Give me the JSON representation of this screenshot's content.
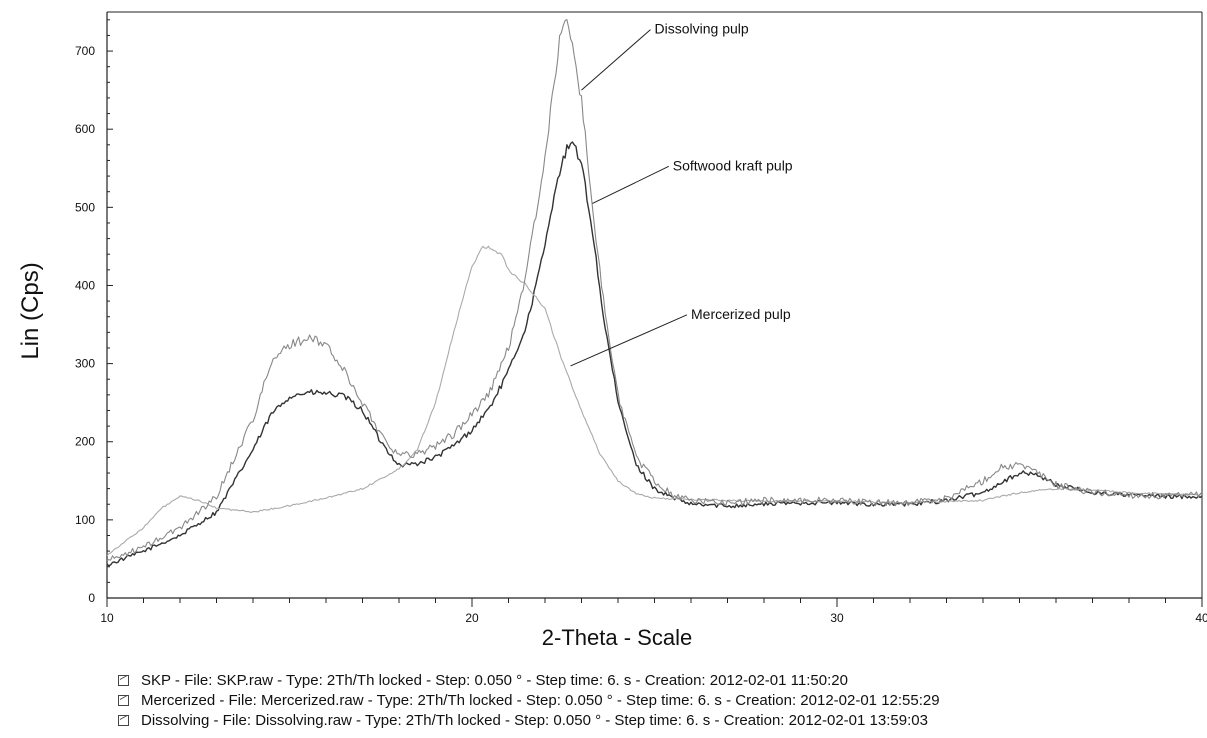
{
  "chart_data": {
    "type": "line",
    "title": "",
    "xlabel": "2-Theta - Scale",
    "ylabel": "Lin (Cps)",
    "xlim": [
      10,
      40
    ],
    "ylim": [
      0,
      750
    ],
    "xticks": [
      10,
      20,
      30,
      40
    ],
    "yticks": [
      0,
      100,
      200,
      300,
      400,
      500,
      600,
      700
    ],
    "grid": false,
    "legend_position": "bottom",
    "series": [
      {
        "name": "SKP",
        "color": "#333333",
        "x": [
          10,
          11,
          12,
          13,
          14,
          14.5,
          15,
          15.5,
          16,
          16.5,
          17,
          17.5,
          18,
          18.5,
          19,
          19.5,
          20,
          20.5,
          21,
          21.5,
          22,
          22.3,
          22.6,
          22.8,
          23,
          23.3,
          23.6,
          24,
          24.5,
          25,
          25.5,
          26,
          27,
          28,
          29,
          30,
          31,
          32,
          33,
          34,
          34.5,
          35,
          35.5,
          36,
          37,
          38,
          39,
          40
        ],
        "values": [
          42,
          60,
          80,
          110,
          190,
          235,
          258,
          263,
          262,
          258,
          240,
          200,
          170,
          172,
          180,
          195,
          215,
          245,
          290,
          350,
          450,
          530,
          575,
          580,
          555,
          470,
          360,
          250,
          170,
          140,
          128,
          120,
          118,
          120,
          122,
          122,
          120,
          120,
          125,
          135,
          148,
          160,
          158,
          145,
          135,
          132,
          130,
          130
        ]
      },
      {
        "name": "Mercerized",
        "color": "#aaaaaa",
        "x": [
          10,
          11,
          11.5,
          12,
          12.5,
          13,
          14,
          15,
          16,
          17,
          18,
          18.5,
          19,
          19.5,
          20,
          20.3,
          20.5,
          20.8,
          21,
          21.5,
          22,
          22.5,
          23,
          23.5,
          24,
          24.5,
          25,
          26,
          28,
          30,
          32,
          34,
          35,
          36,
          37,
          38,
          39,
          40
        ],
        "values": [
          55,
          90,
          115,
          130,
          125,
          115,
          110,
          118,
          128,
          140,
          165,
          190,
          250,
          340,
          425,
          450,
          448,
          440,
          420,
          400,
          370,
          300,
          240,
          185,
          150,
          133,
          128,
          126,
          124,
          124,
          122,
          125,
          135,
          140,
          138,
          135,
          133,
          132
        ]
      },
      {
        "name": "Dissolving",
        "color": "#888888",
        "x": [
          10,
          11,
          12,
          13,
          14,
          14.5,
          15,
          15.5,
          16,
          16.5,
          17,
          17.5,
          18,
          18.5,
          19,
          19.5,
          20,
          20.5,
          21,
          21.5,
          22,
          22.3,
          22.5,
          22.7,
          23,
          23.3,
          23.6,
          24,
          24.5,
          25,
          25.5,
          26,
          27,
          28,
          29,
          30,
          31,
          32,
          33,
          34,
          34.5,
          35,
          35.5,
          36,
          37,
          38,
          39,
          40
        ],
        "values": [
          48,
          65,
          90,
          130,
          230,
          300,
          325,
          332,
          325,
          290,
          250,
          210,
          182,
          185,
          195,
          210,
          235,
          265,
          320,
          420,
          560,
          680,
          740,
          720,
          640,
          500,
          380,
          260,
          180,
          150,
          132,
          125,
          122,
          125,
          125,
          125,
          122,
          122,
          128,
          150,
          168,
          170,
          160,
          145,
          135,
          132,
          130,
          132
        ]
      }
    ],
    "annotations": [
      {
        "text": "Dissolving pulp",
        "at_x": 23.0,
        "at_y": 650,
        "text_x": 25.0,
        "text_y": 730
      },
      {
        "text": "Softwood kraft pulp",
        "at_x": 23.3,
        "at_y": 505,
        "text_x": 25.5,
        "text_y": 555
      },
      {
        "text": "Mercerized pulp",
        "at_x": 22.7,
        "at_y": 297,
        "text_x": 26.0,
        "text_y": 365
      }
    ]
  },
  "legend": {
    "entries": [
      {
        "text": "SKP - File: SKP.raw - Type: 2Th/Th locked - Step: 0.050 ° - Step time: 6. s - Creation: 2012-02-01 11:50:20"
      },
      {
        "text": "Mercerized - File: Mercerized.raw - Type: 2Th/Th locked - Step: 0.050 ° - Step time: 6. s - Creation: 2012-02-01 12:55:29"
      },
      {
        "text": "Dissolving - File: Dissolving.raw - Type: 2Th/Th locked - Step: 0.050 ° - Step time: 6. s - Creation: 2012-02-01 13:59:03"
      }
    ]
  }
}
